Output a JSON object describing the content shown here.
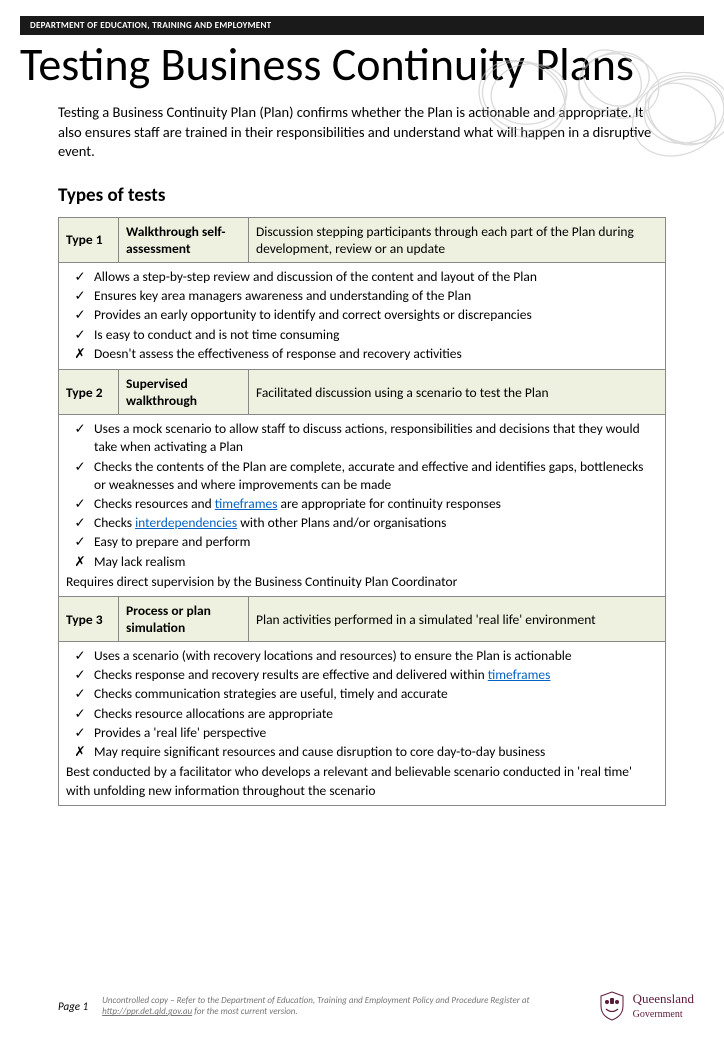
{
  "header_bar": "DEPARTMENT OF EDUCATION, TRAINING AND EMPLOYMENT",
  "title": "Testing Business Continuity Plans",
  "intro": "Testing a Business Continuity Plan (Plan) confirms whether the Plan is actionable and appropriate. It also ensures staff are trained in their responsibilities and understand what will happen in a disruptive event.",
  "section_heading": "Types of tests",
  "colors": {
    "header_bg": "#1a1a1a",
    "header_fg": "#ffffff",
    "row_bg": "#eef1df",
    "border": "#888888",
    "link": "#0563c1",
    "scribble": "#bdbdbd",
    "footer_text": "#777777",
    "logo_text": "#5a1a3a"
  },
  "types": [
    {
      "label": "Type 1",
      "name": "Walkthrough self-assessment",
      "desc": "Discussion stepping participants through each part of the Plan during development, review or an update",
      "items": [
        {
          "mark": "check",
          "text": "Allows a step-by-step review and discussion of the content and layout of the Plan"
        },
        {
          "mark": "check",
          "text": "Ensures key area managers awareness and understanding of the Plan"
        },
        {
          "mark": "check",
          "text": "Provides an early opportunity to identify and correct oversights or discrepancies"
        },
        {
          "mark": "check",
          "text": "Is easy to conduct and is not time consuming"
        },
        {
          "mark": "cross",
          "text": "Doesn't assess the effectiveness of response and recovery activities"
        }
      ],
      "note": ""
    },
    {
      "label": "Type 2",
      "name": "Supervised walkthrough",
      "desc": "Facilitated discussion using a scenario to test the Plan",
      "items": [
        {
          "mark": "check",
          "text": "Uses a mock scenario to allow staff to discuss actions, responsibilities and decisions that they would take when activating a Plan"
        },
        {
          "mark": "check",
          "text": "Checks the contents of the Plan are complete, accurate and effective and identifies gaps, bottlenecks or weaknesses and where improvements can be made"
        },
        {
          "mark": "check",
          "text_html": "Checks resources and <span class=\"link\">timeframes</span> are appropriate for continuity responses"
        },
        {
          "mark": "check",
          "text_html": "Checks <span class=\"link\">interdependencies</span> with other Plans and/or organisations"
        },
        {
          "mark": "check",
          "text": "Easy to prepare and perform"
        },
        {
          "mark": "cross",
          "text": "May lack realism"
        }
      ],
      "note": "Requires direct supervision by the Business Continuity Plan Coordinator"
    },
    {
      "label": "Type 3",
      "name": "Process or plan simulation",
      "desc": "Plan activities performed in a simulated 'real life' environment",
      "items": [
        {
          "mark": "check",
          "text": "Uses a scenario (with recovery locations and resources) to ensure the Plan is actionable"
        },
        {
          "mark": "check",
          "text_html": "Checks response and recovery results are effective and delivered within <span class=\"link\">timeframes</span>"
        },
        {
          "mark": "check",
          "text": "Checks communication strategies are useful, timely and accurate"
        },
        {
          "mark": "check",
          "text": "Checks resource allocations are appropriate"
        },
        {
          "mark": "check",
          "text": "Provides a 'real life' perspective"
        },
        {
          "mark": "cross",
          "text": "May require significant resources and cause disruption to core day-to-day business"
        }
      ],
      "note": "Best conducted by a facilitator who develops a relevant and believable scenario conducted in 'real time' with unfolding new information throughout the scenario"
    }
  ],
  "marks": {
    "check": "✓",
    "cross": "✗"
  },
  "footer": {
    "page": "Page 1",
    "text_html": "Uncontrolled copy – Refer to the Department of Education, Training and Employment Policy and Procedure Register at <u>http://ppr.det.qld.gov.au</u> for the most current version.",
    "logo_line1": "Queensland",
    "logo_line2": "Government"
  }
}
